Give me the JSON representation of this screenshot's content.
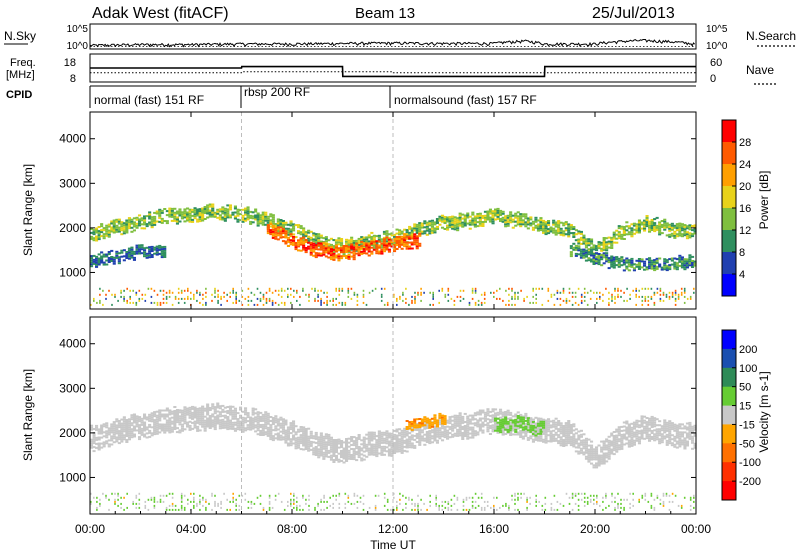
{
  "header": {
    "station": "Adak West (fitACF)",
    "beam": "Beam 13",
    "date": "25/Jul/2013"
  },
  "nsky_panel": {
    "left_label": "N.Sky",
    "right_label": "N.Search",
    "left_ticks": [
      "10^5",
      "10^0"
    ],
    "right_ticks": [
      "10^5",
      "10^0"
    ]
  },
  "freq_panel": {
    "left_label_1": "Freq.",
    "left_label_2": "[MHz]",
    "left_ticks": [
      "18",
      "8"
    ],
    "right_label": "Nave",
    "right_ticks": [
      "60",
      "0"
    ]
  },
  "cpid_panel": {
    "label": "CPID",
    "segments": [
      {
        "label": "normal (fast) 151 RF",
        "start_h": 0,
        "end_h": 6
      },
      {
        "label": "rbsp 200 RF",
        "start_h": 6,
        "end_h": 12
      },
      {
        "label": "normalsound (fast) 157 RF",
        "start_h": 12,
        "end_h": 24
      }
    ]
  },
  "power_colorbar": {
    "title": "Power [dB]",
    "ticks": [
      "28",
      "24",
      "20",
      "16",
      "12",
      "8",
      "4"
    ],
    "colors": [
      "#ff0000",
      "#ff5a00",
      "#ff9f00",
      "#e8d21a",
      "#7fbf3f",
      "#2f8f5f",
      "#2040b0",
      "#0000ff"
    ]
  },
  "velocity_colorbar": {
    "title": "Velocity [m s-1]",
    "ticks": [
      "200",
      "100",
      "50",
      "15",
      "-15",
      "-50",
      "-100",
      "-200"
    ],
    "colors": [
      "#0000ff",
      "#1a4fb0",
      "#2e8b57",
      "#66cc33",
      "#c8c8c8",
      "#ffa500",
      "#ff7000",
      "#ff3000",
      "#ff0000"
    ]
  },
  "chart_data": [
    {
      "type": "line",
      "title": "N.Sky / N.Search",
      "x_unit": "hours UT",
      "y_scale": "log",
      "ylim": [
        1,
        100000
      ],
      "series": [
        {
          "name": "N.Sky",
          "x": [
            0,
            2,
            4,
            6,
            8,
            10,
            12,
            14,
            16,
            17.2,
            18,
            20,
            21.9,
            24
          ],
          "y": [
            4,
            6,
            6,
            8,
            8,
            10,
            12,
            10,
            10,
            30,
            8,
            8,
            40,
            6
          ]
        },
        {
          "name": "N.Search",
          "x": [
            0,
            4,
            8,
            12,
            16,
            20,
            24
          ],
          "y": [
            3,
            3,
            3,
            3,
            3,
            3,
            3
          ]
        }
      ]
    },
    {
      "type": "line",
      "title": "Freq. [MHz] / Nave",
      "x_unit": "hours UT",
      "ylim": [
        8,
        18
      ],
      "series": [
        {
          "name": "Freq.",
          "x": [
            0,
            6,
            6.01,
            10,
            10.01,
            18,
            18.01,
            24
          ],
          "y": [
            13,
            13,
            13.5,
            13.5,
            10,
            10,
            13.5,
            13.5
          ]
        },
        {
          "name": "Nave",
          "x": [
            0,
            6,
            6.01,
            12,
            12.01,
            24
          ],
          "y": [
            20,
            20,
            22,
            22,
            20,
            20
          ]
        }
      ]
    },
    {
      "type": "heatmap",
      "title": "Power [dB]",
      "xlabel": "",
      "ylabel": "Slant Range [km]",
      "x_unit": "hours UT",
      "xlim": [
        0,
        24
      ],
      "ylim": [
        180,
        4600
      ],
      "y_ticks": [
        1000,
        2000,
        3000,
        4000
      ],
      "bands": [
        {
          "x": [
            0,
            1,
            2,
            3,
            4,
            5,
            6,
            7,
            8,
            9,
            10,
            11,
            12,
            13,
            14,
            15,
            16,
            17,
            18,
            18.5,
            19,
            19.5,
            20,
            21,
            22,
            23,
            24
          ],
          "y": [
            1850,
            2000,
            2150,
            2250,
            2300,
            2350,
            2300,
            2150,
            1950,
            1700,
            1550,
            1700,
            1750,
            1950,
            2100,
            2150,
            2250,
            2150,
            2000,
            2000,
            1950,
            1700,
            1450,
            1900,
            2100,
            1950,
            1900
          ],
          "thickness_km": 300,
          "dB": 14
        },
        {
          "x": [
            7,
            8,
            9,
            10,
            11,
            12,
            13
          ],
          "y": [
            1950,
            1700,
            1500,
            1400,
            1550,
            1650,
            1700
          ],
          "thickness_km": 300,
          "dB": 26
        },
        {
          "x": [
            0,
            1,
            2,
            3
          ],
          "y": [
            1250,
            1350,
            1450,
            1500
          ],
          "thickness_km": 250,
          "dB": 8
        },
        {
          "x": [
            19,
            20,
            21,
            22,
            23,
            24
          ],
          "y": [
            1500,
            1300,
            1200,
            1150,
            1200,
            1250
          ],
          "thickness_km": 250,
          "dB": 10
        }
      ]
    },
    {
      "type": "heatmap",
      "title": "Velocity [m s-1]",
      "xlabel": "Time UT",
      "ylabel": "Slant Range [km]",
      "x_unit": "hours UT",
      "x_ticks": [
        "00:00",
        "04:00",
        "08:00",
        "12:00",
        "16:00",
        "20:00",
        "00:00"
      ],
      "xlim": [
        0,
        24
      ],
      "ylim": [
        180,
        4600
      ],
      "y_ticks": [
        1000,
        2000,
        3000,
        4000
      ],
      "bands": [
        {
          "x": [
            0,
            1,
            2,
            3,
            4,
            5,
            6,
            7,
            8,
            9,
            10,
            11,
            12,
            13,
            14,
            15,
            16,
            17,
            18,
            18.5,
            19,
            19.5,
            20,
            21,
            22,
            23,
            24
          ],
          "y": [
            1850,
            2000,
            2150,
            2250,
            2300,
            2350,
            2300,
            2150,
            1950,
            1700,
            1550,
            1700,
            1750,
            1950,
            2100,
            2150,
            2250,
            2150,
            2000,
            2000,
            1950,
            1700,
            1450,
            1900,
            2100,
            1950,
            1900
          ],
          "thickness_km": 500,
          "velocity": 0
        },
        {
          "x": [
            16,
            17,
            18
          ],
          "y": [
            2150,
            2200,
            2050
          ],
          "thickness_km": 300,
          "velocity": 25
        },
        {
          "x": [
            12.5,
            14
          ],
          "y": [
            2150,
            2300
          ],
          "thickness_km": 200,
          "velocity": -40
        }
      ]
    }
  ]
}
